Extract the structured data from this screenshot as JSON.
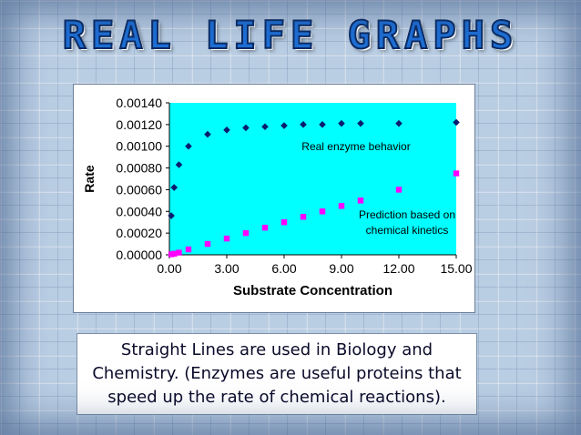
{
  "slide": {
    "title": "REAL LIFE GRAPHS",
    "caption": "Straight Lines are used in Biology and Chemistry. (Enzymes are useful proteins that speed up the rate of chemical reactions)."
  },
  "colors": {
    "plot_area": "#00ffff",
    "series_real": "#0a1c6e",
    "series_prediction": "#ff00ff",
    "title_fill": "#1e6fd6"
  },
  "chart_data": {
    "type": "scatter",
    "xlabel": "Substrate Concentration",
    "ylabel": "Rate",
    "xlim": [
      0,
      15
    ],
    "ylim": [
      0,
      0.0014
    ],
    "xticks": [
      "0.00",
      "3.00",
      "6.00",
      "9.00",
      "12.00",
      "15.00"
    ],
    "yticks": [
      "0.00000",
      "0.00020",
      "0.00040",
      "0.00060",
      "0.00080",
      "0.00100",
      "0.00120",
      "0.00140"
    ],
    "grid": false,
    "series": [
      {
        "name": "Real enzyme behavior",
        "marker": "diamond",
        "points": [
          [
            0.1,
            0.00036
          ],
          [
            0.25,
            0.00062
          ],
          [
            0.5,
            0.00083
          ],
          [
            1,
            0.001
          ],
          [
            2,
            0.00111
          ],
          [
            3,
            0.00115
          ],
          [
            4,
            0.00117
          ],
          [
            5,
            0.00118
          ],
          [
            6,
            0.00119
          ],
          [
            7,
            0.0012
          ],
          [
            8,
            0.0012
          ],
          [
            9,
            0.00121
          ],
          [
            10,
            0.00121
          ],
          [
            12,
            0.00121
          ],
          [
            15,
            0.00122
          ]
        ]
      },
      {
        "name": "Prediction based on chemical kinetics",
        "marker": "square",
        "points": [
          [
            0.1,
            5e-06
          ],
          [
            0.25,
            1e-05
          ],
          [
            0.5,
            2e-05
          ],
          [
            1,
            5e-05
          ],
          [
            2,
            0.0001
          ],
          [
            3,
            0.00015
          ],
          [
            4,
            0.0002
          ],
          [
            5,
            0.00025
          ],
          [
            6,
            0.0003
          ],
          [
            7,
            0.00035
          ],
          [
            8,
            0.0004
          ],
          [
            9,
            0.00045
          ],
          [
            10,
            0.0005
          ],
          [
            12,
            0.0006
          ],
          [
            15,
            0.00075
          ]
        ]
      }
    ],
    "annotations": [
      {
        "series": 0,
        "lines": [
          "Real enzyme behavior"
        ]
      },
      {
        "series": 1,
        "lines": [
          "Prediction based on",
          "chemical kinetics"
        ]
      }
    ]
  }
}
